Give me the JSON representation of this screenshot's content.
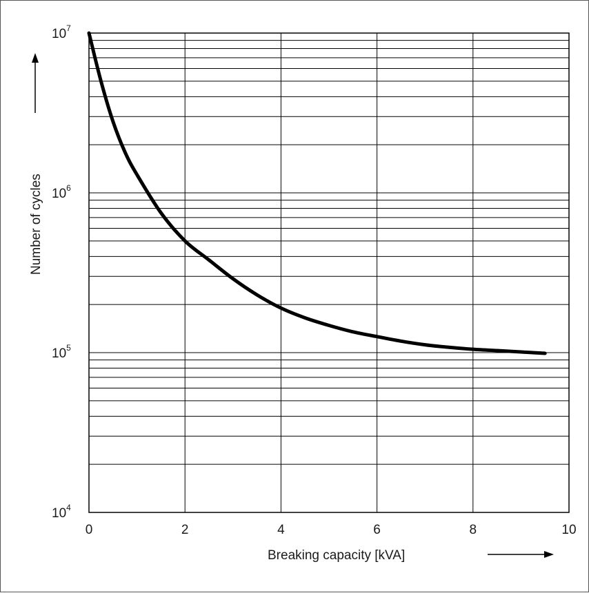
{
  "chart_data": {
    "type": "line",
    "xlabel": "Breaking capacity [kVA]",
    "ylabel": "Number of cycles",
    "xlim": [
      0,
      10
    ],
    "ylim": [
      10000,
      10000000
    ],
    "y_scale": "log",
    "grid": true,
    "x_ticks": [
      "0",
      "2",
      "4",
      "6",
      "8",
      "10"
    ],
    "y_ticks": [
      {
        "base": "10",
        "exp": "4"
      },
      {
        "base": "10",
        "exp": "5"
      },
      {
        "base": "10",
        "exp": "6"
      },
      {
        "base": "10",
        "exp": "7"
      }
    ],
    "series": [
      {
        "x": [
          0,
          0.25,
          0.5,
          0.75,
          1.0,
          1.5,
          2.0,
          2.5,
          3.0,
          3.5,
          4.0,
          4.5,
          5.0,
          5.5,
          6.0,
          6.5,
          7.0,
          7.5,
          8.0,
          8.5,
          9.0,
          9.5
        ],
        "y": [
          10000000,
          5000000,
          2800000,
          1800000,
          1300000,
          750000,
          500000,
          380000,
          290000,
          230000,
          190000,
          165000,
          148000,
          135000,
          126000,
          118000,
          112000,
          108000,
          105000,
          103000,
          101000,
          99000
        ]
      }
    ],
    "colors": {
      "line": "#000000",
      "grid": "#000000",
      "text": "#1a1a1a"
    }
  }
}
